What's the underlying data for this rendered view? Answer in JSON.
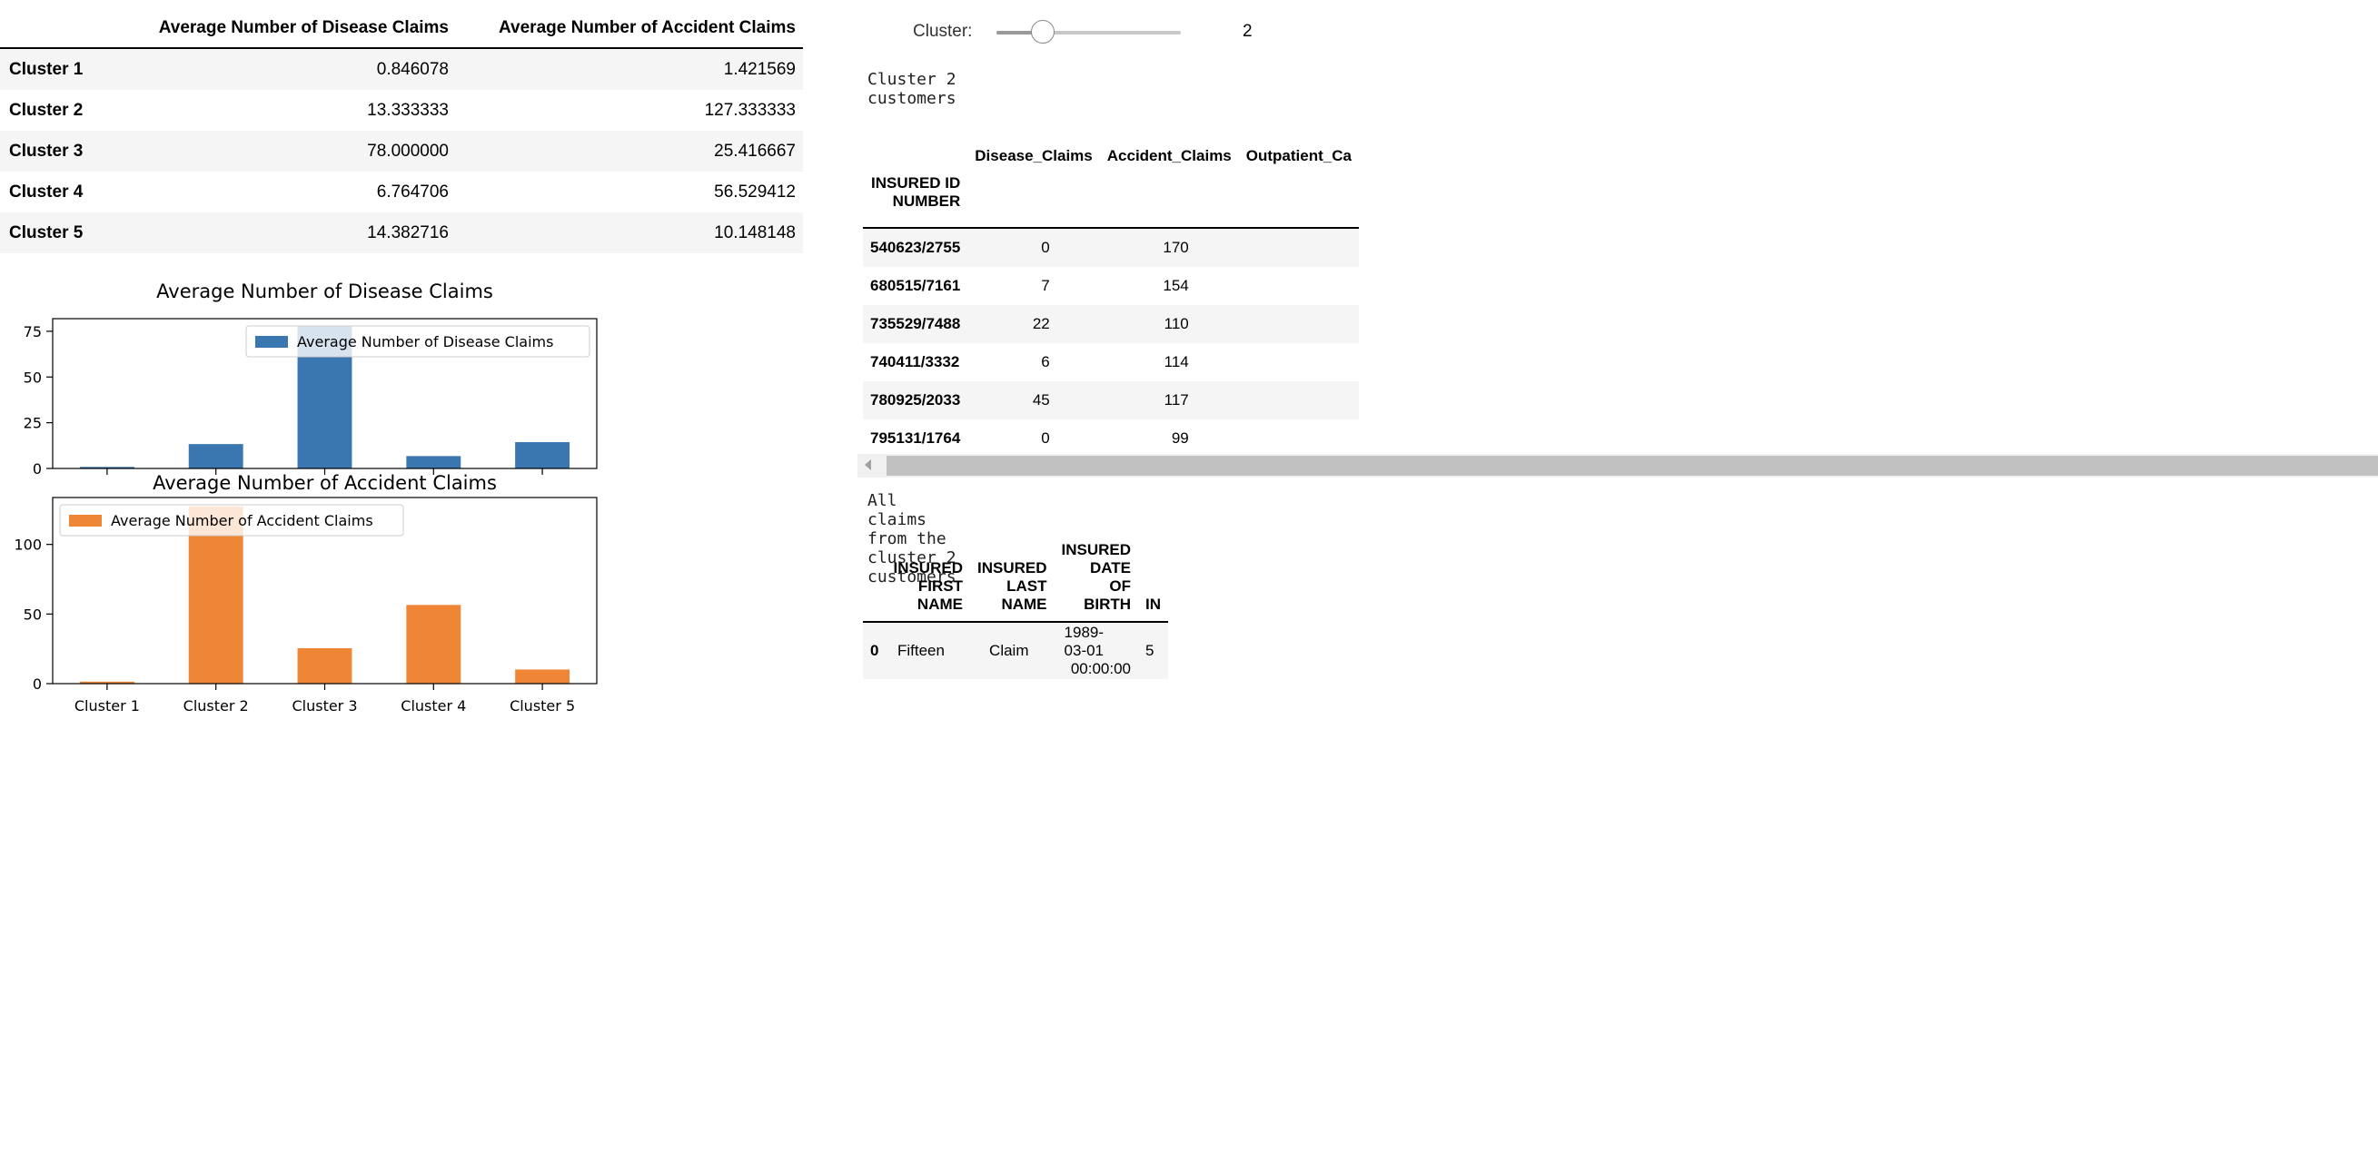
{
  "summary_table": {
    "columns": [
      "Average Number of Disease Claims",
      "Average Number of Accident Claims"
    ],
    "rows": [
      {
        "label": "Cluster 1",
        "disease": "0.846078",
        "accident": "1.421569"
      },
      {
        "label": "Cluster 2",
        "disease": "13.333333",
        "accident": "127.333333"
      },
      {
        "label": "Cluster 3",
        "disease": "78.000000",
        "accident": "25.416667"
      },
      {
        "label": "Cluster 4",
        "disease": "6.764706",
        "accident": "56.529412"
      },
      {
        "label": "Cluster 5",
        "disease": "14.382716",
        "accident": "10.148148"
      }
    ]
  },
  "chart_data": [
    {
      "type": "bar",
      "title": "Average Number of Disease Claims",
      "categories": [
        "Cluster 1",
        "Cluster 2",
        "Cluster 3",
        "Cluster 4",
        "Cluster 5"
      ],
      "series": [
        {
          "name": "Average Number of Disease Claims",
          "values": [
            0.846078,
            13.333333,
            78.0,
            6.764706,
            14.382716
          ],
          "color": "#3a76af"
        }
      ],
      "yticks": [
        0,
        25,
        50,
        75
      ],
      "ylim": [
        0,
        81.9
      ],
      "legend": "top-right",
      "grid": false
    },
    {
      "type": "bar",
      "title": "Average Number of Accident Claims",
      "categories": [
        "Cluster 1",
        "Cluster 2",
        "Cluster 3",
        "Cluster 4",
        "Cluster 5"
      ],
      "series": [
        {
          "name": "Average Number of Accident Claims",
          "values": [
            1.421569,
            127.333333,
            25.416667,
            56.529412,
            10.148148
          ],
          "color": "#ef8636"
        }
      ],
      "yticks": [
        0,
        50,
        100
      ],
      "ylim": [
        0,
        133.7
      ],
      "legend": "top-left",
      "grid": false
    }
  ],
  "widget": {
    "label": "Cluster:",
    "value": 2,
    "min": 1,
    "max": 5,
    "value_text": "2"
  },
  "customers_caption": "Cluster 2 customers",
  "customers_table": {
    "index_name": "INSURED ID NUMBER",
    "index_name_line1": "INSURED ID",
    "index_name_line2": "NUMBER",
    "columns": [
      "Disease_Claims",
      "Accident_Claims",
      "Outpatient_Ca"
    ],
    "rows": [
      {
        "id": "540623/2755",
        "disease": "0",
        "accident": "170"
      },
      {
        "id": "680515/7161",
        "disease": "7",
        "accident": "154"
      },
      {
        "id": "735529/7488",
        "disease": "22",
        "accident": "110"
      },
      {
        "id": "740411/3332",
        "disease": "6",
        "accident": "114"
      },
      {
        "id": "780925/2033",
        "disease": "45",
        "accident": "117"
      },
      {
        "id": "795131/1764",
        "disease": "0",
        "accident": "99"
      }
    ]
  },
  "claims_caption": "All claims from the cluster 2 customers",
  "claims_table": {
    "columns": [
      {
        "line1": "INSURED",
        "line2": "FIRST NAME"
      },
      {
        "line1": "INSURED",
        "line2": "LAST NAME"
      },
      {
        "line1": "INSURED DATE",
        "line2": "OF BIRTH"
      },
      {
        "line1": "IN",
        "line2": ""
      }
    ],
    "rows": [
      {
        "index": "0",
        "first": "Fifteen",
        "last": "Claim",
        "dob1": "1989-03-01",
        "dob2": "00:00:00",
        "next": "5"
      }
    ]
  }
}
